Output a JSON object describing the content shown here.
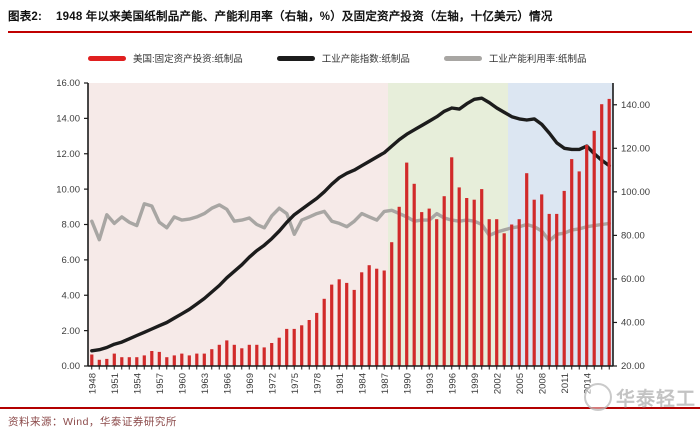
{
  "header": {
    "tag": "图表2:",
    "title": "1948 年以来美国纸制品产能、产能利用率（右轴，%）及固定资产投资（左轴，十亿美元）情况"
  },
  "legend": {
    "items": [
      {
        "label": "美国:固定资产投资:纸制品",
        "color": "#e01f1f",
        "type": "bar"
      },
      {
        "label": "工业产能指数:纸制品",
        "color": "#1c1c1c",
        "type": "line"
      },
      {
        "label": "工业产能利用率:纸制品",
        "color": "#a8a6a3",
        "type": "line"
      }
    ]
  },
  "footer": {
    "source": "资料来源：Wind，华泰证券研究所"
  },
  "watermark": {
    "text": "华泰轻工"
  },
  "chart_data": {
    "type": "combo",
    "x_years": [
      1948,
      1949,
      1950,
      1951,
      1952,
      1953,
      1954,
      1955,
      1956,
      1957,
      1958,
      1959,
      1960,
      1961,
      1962,
      1963,
      1964,
      1965,
      1966,
      1967,
      1968,
      1969,
      1970,
      1971,
      1972,
      1973,
      1974,
      1975,
      1976,
      1977,
      1978,
      1979,
      1980,
      1981,
      1982,
      1983,
      1984,
      1985,
      1986,
      1987,
      1988,
      1989,
      1990,
      1991,
      1992,
      1993,
      1994,
      1995,
      1996,
      1997,
      1998,
      1999,
      2000,
      2001,
      2002,
      2003,
      2004,
      2005,
      2006,
      2007,
      2008,
      2009,
      2010,
      2011,
      2012,
      2013,
      2014,
      2015,
      2016,
      2017
    ],
    "x_tick_labels": [
      "1948",
      "1951",
      "1954",
      "1957",
      "1960",
      "1963",
      "1966",
      "1969",
      "1972",
      "1975",
      "1978",
      "1981",
      "1984",
      "1987",
      "1990",
      "1993",
      "1996",
      "1999",
      "2002",
      "2005",
      "2008",
      "2011",
      "2014"
    ],
    "y_left": {
      "min": 0,
      "max": 16,
      "ticks": [
        "0.00",
        "2.00",
        "4.00",
        "6.00",
        "8.00",
        "10.00",
        "12.00",
        "14.00",
        "16.00"
      ]
    },
    "y_right": {
      "min": 20,
      "max": 150,
      "ticks": [
        "20.00",
        "40.00",
        "60.00",
        "80.00",
        "100.00",
        "120.00",
        "140.00"
      ]
    },
    "series": [
      {
        "name": "美国:固定资产投资:纸制品",
        "type": "bar",
        "axis": "left",
        "color": "#d12a2a",
        "values": [
          0.65,
          0.35,
          0.4,
          0.7,
          0.5,
          0.5,
          0.5,
          0.6,
          0.85,
          0.8,
          0.5,
          0.6,
          0.7,
          0.6,
          0.7,
          0.7,
          0.95,
          1.2,
          1.45,
          1.2,
          1.0,
          1.2,
          1.2,
          1.05,
          1.3,
          1.6,
          2.1,
          2.1,
          2.3,
          2.6,
          3.0,
          3.8,
          4.6,
          4.9,
          4.7,
          4.3,
          5.3,
          5.7,
          5.5,
          5.4,
          7.0,
          9.0,
          11.5,
          10.3,
          8.7,
          8.9,
          8.3,
          9.6,
          11.8,
          10.1,
          9.5,
          9.4,
          10.0,
          8.3,
          8.3,
          7.5,
          8.0,
          8.3,
          10.9,
          9.4,
          9.7,
          8.6,
          8.6,
          9.9,
          11.7,
          11.0,
          12.5,
          13.3,
          14.8,
          15.1
        ]
      },
      {
        "name": "工业产能指数:纸制品",
        "type": "line",
        "axis": "right",
        "color": "#1c1c1c",
        "values": [
          27,
          27.5,
          28.5,
          30,
          31,
          32.5,
          34,
          35.5,
          37,
          38.5,
          40,
          42,
          44,
          46,
          48.5,
          51,
          54,
          57,
          60.5,
          63.5,
          66.5,
          70,
          73,
          75.5,
          78.5,
          82,
          86,
          89.5,
          92,
          94.5,
          97,
          100,
          103.5,
          106.5,
          108.5,
          110,
          112,
          114,
          116,
          118,
          121,
          124,
          126.5,
          128.5,
          130.5,
          132.5,
          134.5,
          137,
          138.5,
          138,
          140.5,
          142.5,
          143,
          141,
          138.5,
          136.5,
          134.5,
          133.5,
          133,
          133.5,
          131,
          127,
          122.5,
          120,
          119.5,
          119.5,
          121,
          117.5,
          114.5,
          112
        ]
      },
      {
        "name": "工业产能利用率:纸制品",
        "type": "line",
        "axis": "right",
        "color": "#a8a6a3",
        "values": [
          86.5,
          78,
          89.5,
          85.5,
          88.5,
          86,
          84.5,
          94.5,
          93.5,
          86,
          83.5,
          88.5,
          87,
          87.5,
          88.5,
          90,
          92.5,
          94,
          92,
          86.5,
          87,
          88,
          85,
          83.5,
          89,
          92.5,
          90,
          80.5,
          87,
          88.5,
          90,
          91,
          86.5,
          85.5,
          84,
          86.5,
          90,
          88.5,
          87,
          91,
          91.5,
          90,
          88.5,
          86.5,
          87,
          87,
          90,
          88,
          87,
          86.5,
          87,
          86.5,
          85,
          80,
          81.5,
          82.5,
          83.5,
          84,
          85,
          84,
          82,
          77.5,
          80.5,
          81,
          82.5,
          83,
          84,
          84.5,
          85,
          85.5
        ]
      }
    ],
    "regions": [
      {
        "from_year": 1948,
        "to_year": 1987,
        "color": "#f6eae8"
      },
      {
        "from_year": 1988,
        "to_year": 2003,
        "color": "#e7eeda"
      },
      {
        "from_year": 2004,
        "to_year": 2017,
        "color": "#dce6f2"
      }
    ],
    "legend_position": "top",
    "grid": false
  }
}
